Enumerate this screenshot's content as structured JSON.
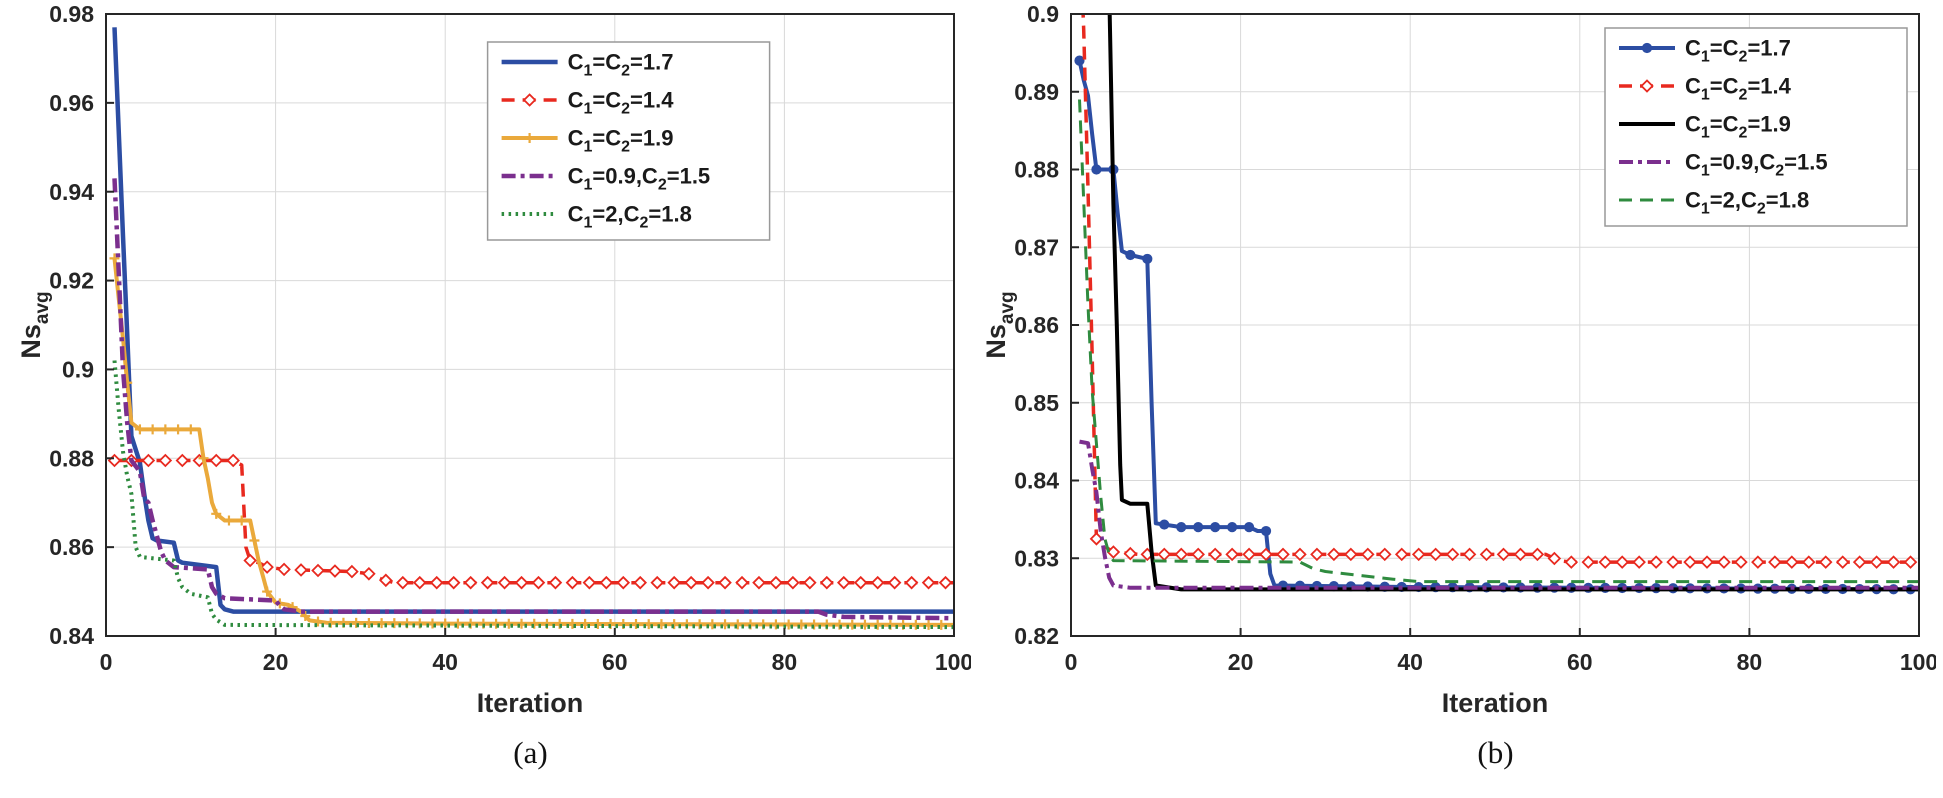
{
  "figure": {
    "background": "#ffffff",
    "axis_color": "#262626",
    "grid_color": "#d9d9d9",
    "legend_border_color": "#999999"
  },
  "chart_data": [
    {
      "panel": "a",
      "caption": "(a)",
      "type": "line",
      "title": "",
      "xlabel": "Iteration",
      "ylabel": "Ns_avg",
      "xlim": [
        0,
        100
      ],
      "ylim": [
        0.84,
        0.98
      ],
      "xticks": [
        0,
        20,
        40,
        60,
        80,
        100
      ],
      "xtick_labels": [
        "0",
        "20",
        "40",
        "60",
        "80",
        "100"
      ],
      "yticks": [
        0.84,
        0.86,
        0.88,
        0.9,
        0.92,
        0.94,
        0.96,
        0.98
      ],
      "ytick_labels": [
        "0.84",
        "0.86",
        "0.88",
        "0.9",
        "0.92",
        "0.94",
        "0.96",
        "0.98"
      ],
      "grid": true,
      "legend_position": "upper-center-right-inset",
      "series": [
        {
          "name": "C_1=C_2=1.7",
          "color": "#2c4da3",
          "line": "solid",
          "width": 4.5,
          "marker": "none",
          "points": [
            [
              1,
              0.977
            ],
            [
              2,
              0.93
            ],
            [
              2.5,
              0.908
            ],
            [
              3,
              0.885
            ],
            [
              4,
              0.879
            ],
            [
              4.5,
              0.872
            ],
            [
              5,
              0.866
            ],
            [
              5.5,
              0.862
            ],
            [
              6,
              0.8615
            ],
            [
              8,
              0.861
            ],
            [
              8.5,
              0.857
            ],
            [
              9,
              0.8565
            ],
            [
              13,
              0.8555
            ],
            [
              13.5,
              0.847
            ],
            [
              14,
              0.846
            ],
            [
              15,
              0.8455
            ],
            [
              100,
              0.8455
            ]
          ]
        },
        {
          "name": "C_1=C_2=1.4",
          "color": "#e8291f",
          "line": "dashed",
          "width": 3.5,
          "marker": "diamond",
          "marker_every": 2,
          "points": [
            [
              1,
              0.8795
            ],
            [
              15,
              0.8795
            ],
            [
              16,
              0.8785
            ],
            [
              16.5,
              0.86
            ],
            [
              17,
              0.857
            ],
            [
              18,
              0.8565
            ],
            [
              19,
              0.8555
            ],
            [
              21,
              0.855
            ],
            [
              24,
              0.8548
            ],
            [
              29,
              0.8545
            ],
            [
              31,
              0.854
            ],
            [
              32.5,
              0.8528
            ],
            [
              34,
              0.852
            ],
            [
              100,
              0.852
            ]
          ]
        },
        {
          "name": "C_1=C_2=1.9",
          "color": "#eaa93b",
          "line": "solid",
          "width": 4,
          "marker": "plus",
          "marker_every": 1.5,
          "points": [
            [
              1,
              0.925
            ],
            [
              1.5,
              0.916
            ],
            [
              2,
              0.907
            ],
            [
              2.5,
              0.897
            ],
            [
              3,
              0.888
            ],
            [
              4,
              0.8865
            ],
            [
              11,
              0.8865
            ],
            [
              11.5,
              0.88
            ],
            [
              12,
              0.8755
            ],
            [
              12.5,
              0.87
            ],
            [
              13,
              0.8675
            ],
            [
              14,
              0.866
            ],
            [
              17,
              0.866
            ],
            [
              17.5,
              0.8615
            ],
            [
              18,
              0.857
            ],
            [
              18.5,
              0.8535
            ],
            [
              19,
              0.85
            ],
            [
              20,
              0.8475
            ],
            [
              21.5,
              0.847
            ],
            [
              22,
              0.8465
            ],
            [
              23,
              0.8455
            ],
            [
              24,
              0.8435
            ],
            [
              26,
              0.843
            ],
            [
              40,
              0.8428
            ],
            [
              100,
              0.8425
            ]
          ]
        },
        {
          "name": "C_1=0.9,C_2=1.5",
          "color": "#7b2f8e",
          "line": "dashdot",
          "width": 4.5,
          "marker": "none",
          "points": [
            [
              1,
              0.943
            ],
            [
              1.5,
              0.922
            ],
            [
              2,
              0.9
            ],
            [
              2.5,
              0.888
            ],
            [
              3,
              0.8795
            ],
            [
              4,
              0.877
            ],
            [
              4.5,
              0.871
            ],
            [
              5,
              0.87
            ],
            [
              5.5,
              0.866
            ],
            [
              6,
              0.8625
            ],
            [
              6.5,
              0.859
            ],
            [
              7,
              0.857
            ],
            [
              8,
              0.8555
            ],
            [
              12,
              0.855
            ],
            [
              12.5,
              0.851
            ],
            [
              13,
              0.8495
            ],
            [
              14,
              0.8485
            ],
            [
              20,
              0.848
            ],
            [
              20.5,
              0.8468
            ],
            [
              21,
              0.846
            ],
            [
              23,
              0.8455
            ],
            [
              84,
              0.8455
            ],
            [
              85,
              0.8448
            ],
            [
              87,
              0.8443
            ],
            [
              100,
              0.844
            ]
          ]
        },
        {
          "name": "C_1=2,C_2=1.8",
          "color": "#2f8b3f",
          "line": "dotted",
          "width": 4,
          "marker": "none",
          "points": [
            [
              1,
              0.902
            ],
            [
              1.5,
              0.891
            ],
            [
              2,
              0.8815
            ],
            [
              2.5,
              0.876
            ],
            [
              3,
              0.872
            ],
            [
              3.5,
              0.86
            ],
            [
              4,
              0.8578
            ],
            [
              8,
              0.857
            ],
            [
              8.5,
              0.853
            ],
            [
              9,
              0.851
            ],
            [
              10,
              0.8495
            ],
            [
              12,
              0.8487
            ],
            [
              12.5,
              0.845
            ],
            [
              13,
              0.8437
            ],
            [
              14,
              0.8425
            ],
            [
              100,
              0.842
            ]
          ]
        }
      ]
    },
    {
      "panel": "b",
      "caption": "(b)",
      "type": "line",
      "title": "",
      "xlabel": "Iteration",
      "ylabel": "Ns_avg",
      "xlim": [
        0,
        100
      ],
      "ylim": [
        0.82,
        0.9
      ],
      "xticks": [
        0,
        20,
        40,
        60,
        80,
        100
      ],
      "xtick_labels": [
        "0",
        "20",
        "40",
        "60",
        "80",
        "100"
      ],
      "yticks": [
        0.82,
        0.83,
        0.84,
        0.85,
        0.86,
        0.87,
        0.88,
        0.89,
        0.9
      ],
      "ytick_labels": [
        "0.82",
        "0.83",
        "0.84",
        "0.85",
        "0.86",
        "0.87",
        "0.88",
        "0.89",
        "0.9"
      ],
      "grid": true,
      "legend_position": "upper-right-inset",
      "series": [
        {
          "name": "C_1=C_2=1.7",
          "color": "#2c4da3",
          "line": "solid",
          "width": 4,
          "marker": "circle",
          "marker_every": 2,
          "points": [
            [
              1,
              0.894
            ],
            [
              1.5,
              0.8915
            ],
            [
              2,
              0.8895
            ],
            [
              2.5,
              0.8845
            ],
            [
              3,
              0.88
            ],
            [
              5,
              0.88
            ],
            [
              5.5,
              0.8745
            ],
            [
              6,
              0.8695
            ],
            [
              7,
              0.869
            ],
            [
              9,
              0.8685
            ],
            [
              9.5,
              0.85
            ],
            [
              10,
              0.8345
            ],
            [
              13,
              0.834
            ],
            [
              21,
              0.834
            ],
            [
              22,
              0.8335
            ],
            [
              23,
              0.8335
            ],
            [
              23.5,
              0.828
            ],
            [
              24,
              0.8265
            ],
            [
              40,
              0.8263
            ],
            [
              100,
              0.826
            ]
          ]
        },
        {
          "name": "C_1=C_2=1.4",
          "color": "#e8291f",
          "line": "dashed",
          "width": 3.5,
          "marker": "diamond",
          "marker_every": 2,
          "points": [
            [
              1,
              0.912
            ],
            [
              1.5,
              0.898
            ],
            [
              2,
              0.8775
            ],
            [
              2.5,
              0.856
            ],
            [
              3,
              0.8325
            ],
            [
              4,
              0.8315
            ],
            [
              5,
              0.8308
            ],
            [
              8,
              0.8305
            ],
            [
              56,
              0.8305
            ],
            [
              57.5,
              0.8297
            ],
            [
              59,
              0.8295
            ],
            [
              100,
              0.8295
            ]
          ]
        },
        {
          "name": "C_1=C_2=1.9",
          "color": "#000000",
          "line": "solid",
          "width": 4,
          "marker": "none",
          "points": [
            [
              3.8,
              0.945
            ],
            [
              4.2,
              0.92
            ],
            [
              4.6,
              0.898
            ],
            [
              5,
              0.8755
            ],
            [
              5.4,
              0.86
            ],
            [
              5.8,
              0.842
            ],
            [
              6,
              0.8375
            ],
            [
              7,
              0.837
            ],
            [
              9,
              0.837
            ],
            [
              9.5,
              0.8308
            ],
            [
              10,
              0.8265
            ],
            [
              13,
              0.826
            ],
            [
              100,
              0.826
            ]
          ]
        },
        {
          "name": "C_1=0.9,C_2=1.5",
          "color": "#7b2f8e",
          "line": "dashdot",
          "width": 4,
          "marker": "none",
          "points": [
            [
              1,
              0.845
            ],
            [
              2,
              0.8448
            ],
            [
              2.5,
              0.8415
            ],
            [
              3,
              0.8385
            ],
            [
              3.5,
              0.8335
            ],
            [
              4,
              0.8302
            ],
            [
              4.5,
              0.8275
            ],
            [
              5,
              0.8265
            ],
            [
              7,
              0.8262
            ],
            [
              100,
              0.8262
            ]
          ]
        },
        {
          "name": "C_1=2,C_2=1.8",
          "color": "#2f8b3f",
          "line": "dashed",
          "width": 3,
          "marker": "none",
          "points": [
            [
              1,
              0.889
            ],
            [
              1.5,
              0.876
            ],
            [
              2,
              0.8625
            ],
            [
              2.5,
              0.8515
            ],
            [
              3,
              0.8448
            ],
            [
              3.5,
              0.838
            ],
            [
              4,
              0.8325
            ],
            [
              4.5,
              0.8305
            ],
            [
              5,
              0.8297
            ],
            [
              27,
              0.8295
            ],
            [
              28.5,
              0.8287
            ],
            [
              30,
              0.8283
            ],
            [
              34,
              0.8278
            ],
            [
              38,
              0.8273
            ],
            [
              41,
              0.827
            ],
            [
              100,
              0.827
            ]
          ]
        }
      ]
    }
  ]
}
